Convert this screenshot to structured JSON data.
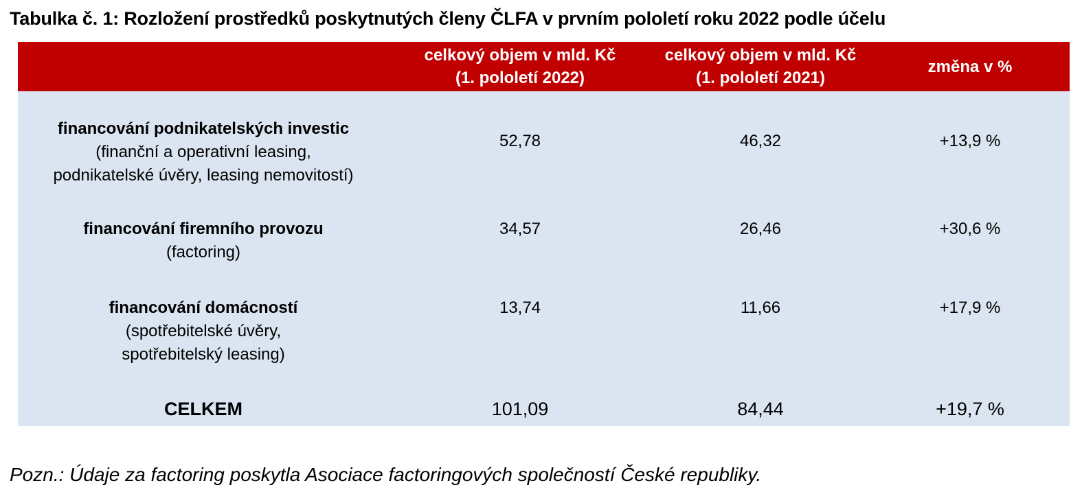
{
  "title": "Tabulka č. 1: Rozložení prostředků poskytnutých členy ČLFA v prvním pololetí roku 2022 podle účelu",
  "header": {
    "col1": "",
    "col2": "celkový objem v mld. Kč\n(1. pololetí 2022)",
    "col3": "celkový objem v mld. Kč\n(1. pololetí 2021)",
    "col4": "změna v %"
  },
  "rows": [
    {
      "title": "financování podnikatelských investic",
      "desc": "(finanční a operativní leasing,\npodnikatelské úvěry, leasing nemovitostí)",
      "v2022": "52,78",
      "v2021": "46,32",
      "change": "+13,9 %"
    },
    {
      "title": "financování firemního provozu",
      "desc": "(factoring)",
      "v2022": "34,57",
      "v2021": "26,46",
      "change": "+30,6 %"
    },
    {
      "title": "financování domácností",
      "desc": "(spotřebitelské úvěry,\nspotřebitelský leasing)",
      "v2022": "13,74",
      "v2021": "11,66",
      "change": "+17,9 %"
    }
  ],
  "total": {
    "label": "CELKEM",
    "v2022": "101,09",
    "v2021": "84,44",
    "change": "+19,7 %"
  },
  "note": "Pozn.: Údaje za factoring poskytla Asociace factoringových společností České republiky.",
  "colors": {
    "header_bg": "#c00000",
    "body_bg": "#dbe5f1"
  }
}
